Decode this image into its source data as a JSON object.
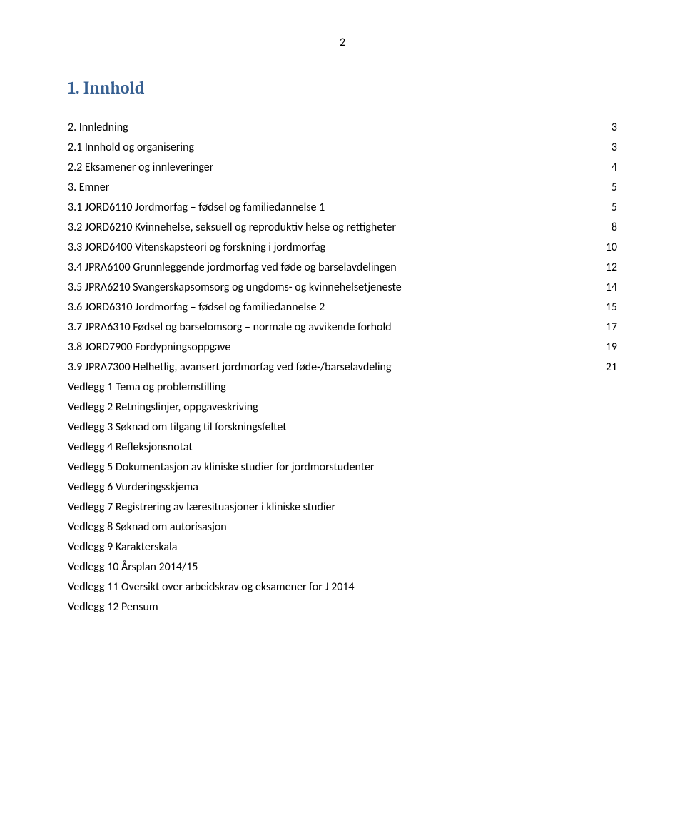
{
  "pageNumber": "2",
  "heading": "1. Innhold",
  "headingColor": "#365f91",
  "textColor": "#000000",
  "backgroundColor": "#ffffff",
  "fontSizes": {
    "heading": 24,
    "body": 16,
    "pageNumber": 16
  },
  "toc": [
    {
      "label": "2.   Innledning",
      "page": "3",
      "level": 0
    },
    {
      "label": "2.1  Innhold og organisering",
      "page": "3",
      "level": 0
    },
    {
      "label": "2.2  Eksamener og innleveringer",
      "page": "4",
      "level": 0
    },
    {
      "label": "3.   Emner",
      "page": "5",
      "level": 0
    },
    {
      "label": "3.1  JORD6110 Jordmorfag – fødsel og familiedannelse 1",
      "page": "5",
      "level": 0
    },
    {
      "label": "3.2  JORD6210 Kvinnehelse, seksuell og reproduktiv helse og rettigheter",
      "page": "8",
      "level": 0
    },
    {
      "label": "3.3  JORD6400 Vitenskapsteori og forskning i jordmorfag",
      "page": "10",
      "level": 0
    },
    {
      "label": "3.4  JPRA6100 Grunnleggende jordmorfag ved føde og barselavdelingen",
      "page": "12",
      "level": 0
    },
    {
      "label": "3.5  JPRA6210 Svangerskapsomsorg og ungdoms- og kvinnehelsetjeneste",
      "page": "14",
      "level": 0
    },
    {
      "label": "3.6  JORD6310 Jordmorfag – fødsel og familiedannelse 2",
      "page": "15",
      "level": 0
    },
    {
      "label": "3.7  JPRA6310 Fødsel og barselomsorg – normale og avvikende forhold",
      "page": "17",
      "level": 0
    },
    {
      "label": "3.8  JORD7900 Fordypningsoppgave",
      "page": "19",
      "level": 0
    },
    {
      "label": "3.9  JPRA7300 Helhetlig, avansert jordmorfag ved føde-/barselavdeling",
      "page": "21",
      "level": 0
    },
    {
      "label": "Vedlegg 1   Tema og problemstilling",
      "page": "",
      "level": 0
    },
    {
      "label": "Vedlegg 2   Retningslinjer, oppgaveskriving",
      "page": "",
      "level": 0
    },
    {
      "label": "Vedlegg 3   Søknad om tilgang til forskningsfeltet",
      "page": "",
      "level": 0
    },
    {
      "label": "Vedlegg 4   Refleksjonsnotat",
      "page": "",
      "level": 0
    },
    {
      "label": "Vedlegg 5   Dokumentasjon av kliniske studier for jordmorstudenter",
      "page": "",
      "level": 0
    },
    {
      "label": "Vedlegg 6   Vurderingsskjema",
      "page": "",
      "level": 0
    },
    {
      "label": "Vedlegg 7   Registrering av læresituasjoner i kliniske studier",
      "page": "",
      "level": 0
    },
    {
      "label": "Vedlegg 8   Søknad om autorisasjon",
      "page": "",
      "level": 0
    },
    {
      "label": "Vedlegg 9   Karakterskala",
      "page": "",
      "level": 0
    },
    {
      "label": "Vedlegg 10 Årsplan 2014/15",
      "page": "",
      "level": 0
    },
    {
      "label": "Vedlegg 11 Oversikt over arbeidskrav og eksamener for J 2014",
      "page": "",
      "level": 0
    },
    {
      "label": "Vedlegg 12 Pensum",
      "page": "",
      "level": 0
    }
  ]
}
